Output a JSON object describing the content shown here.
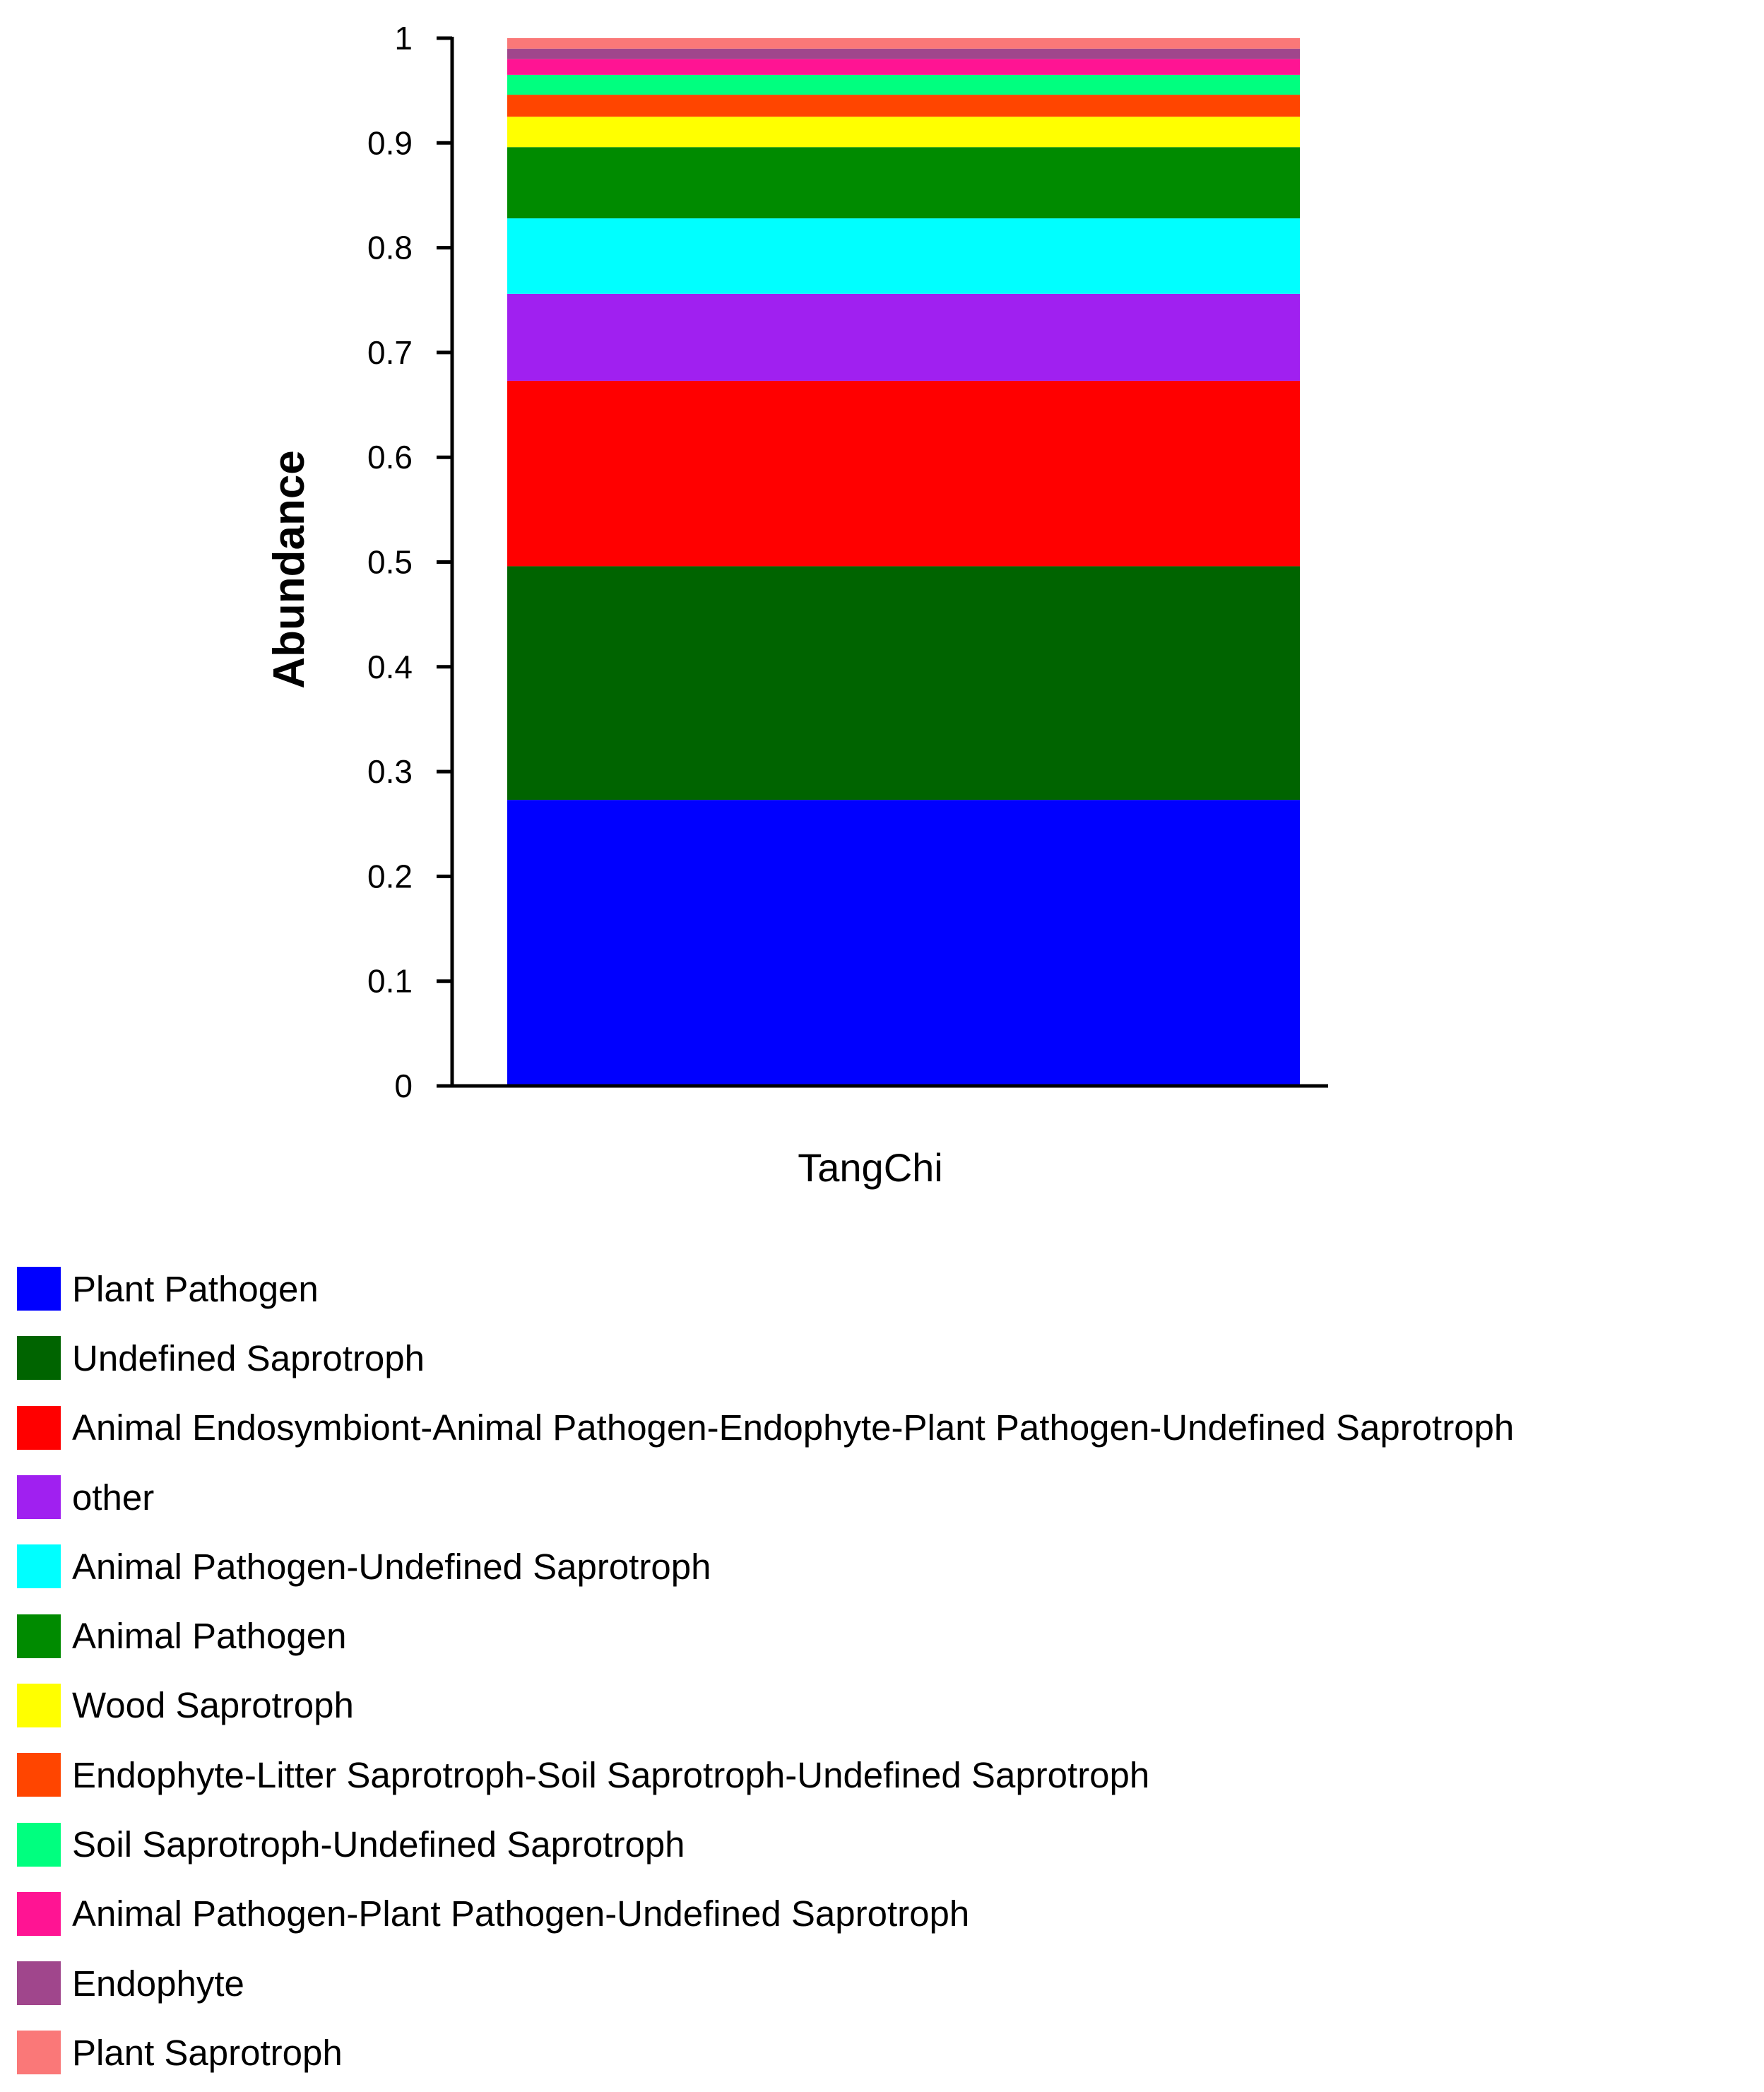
{
  "chart_data": {
    "type": "bar",
    "stacked": true,
    "categories": [
      "TangChi"
    ],
    "ylabel": "Abundance",
    "ylim": [
      0,
      1
    ],
    "yticks": [
      "0",
      "0.1",
      "0.2",
      "0.3",
      "0.4",
      "0.5",
      "0.6",
      "0.7",
      "0.8",
      "0.9",
      "1"
    ],
    "grid": false,
    "legend_position": "bottom-left",
    "series": [
      {
        "name": "Plant Pathogen",
        "color": "#0000FF",
        "values": [
          0.273
        ]
      },
      {
        "name": "Undefined Saprotroph",
        "color": "#006400",
        "values": [
          0.223
        ]
      },
      {
        "name": "Animal Endosymbiont-Animal Pathogen-Endophyte-Plant Pathogen-Undefined Saprotroph",
        "color": "#FF0000",
        "values": [
          0.177
        ]
      },
      {
        "name": "other",
        "color": "#A020F0",
        "values": [
          0.083
        ]
      },
      {
        "name": "Animal Pathogen-Undefined Saprotroph",
        "color": "#00FFFF",
        "values": [
          0.072
        ]
      },
      {
        "name": "Animal Pathogen",
        "color": "#008B00",
        "values": [
          0.068
        ]
      },
      {
        "name": "Wood Saprotroph",
        "color": "#FFFF00",
        "values": [
          0.029
        ]
      },
      {
        "name": "Endophyte-Litter Saprotroph-Soil Saprotroph-Undefined Saprotroph",
        "color": "#FF4500",
        "values": [
          0.021
        ]
      },
      {
        "name": "Soil Saprotroph-Undefined Saprotroph",
        "color": "#00FF7F",
        "values": [
          0.019
        ]
      },
      {
        "name": "Animal Pathogen-Plant Pathogen-Undefined Saprotroph",
        "color": "#FF1493",
        "values": [
          0.015
        ]
      },
      {
        "name": "Endophyte",
        "color": "#A0468C",
        "values": [
          0.01
        ]
      },
      {
        "name": "Plant Saprotroph",
        "color": "#FA7878",
        "values": [
          0.01
        ]
      }
    ]
  }
}
